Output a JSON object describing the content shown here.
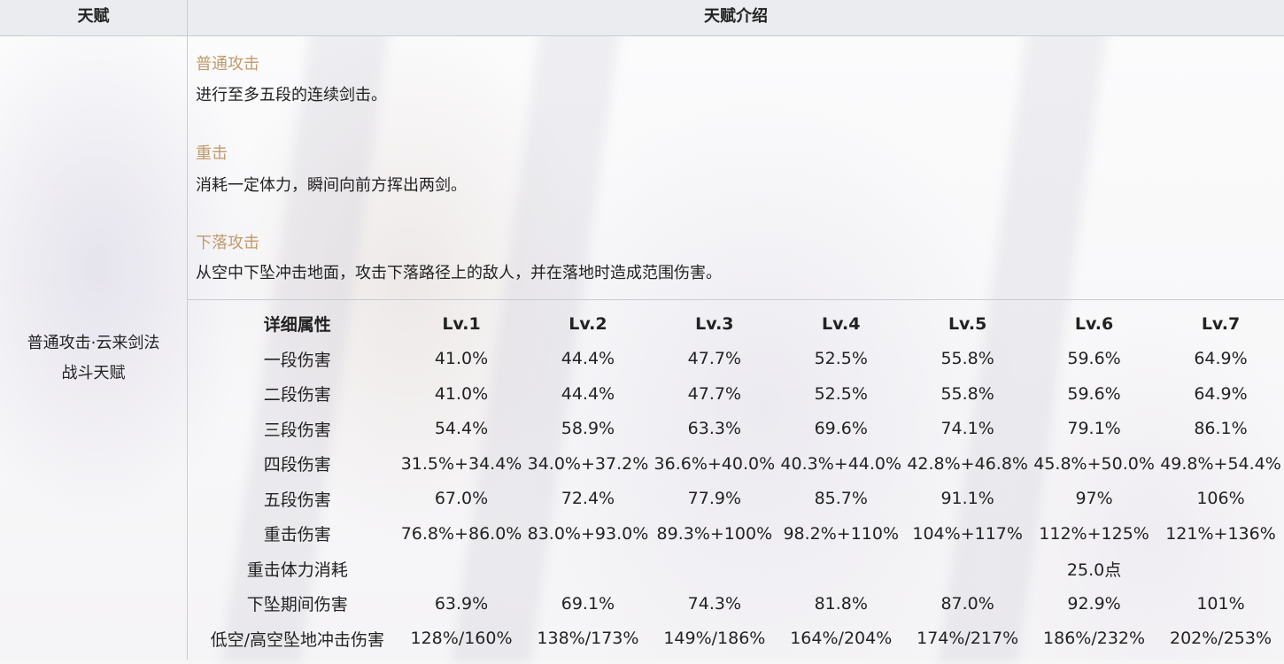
{
  "header": {
    "col1": "天赋",
    "col2": "天赋介绍"
  },
  "talent": {
    "name": "普通攻击·云来剑法",
    "type": "战斗天赋"
  },
  "sections": [
    {
      "title": "普通攻击",
      "text": "进行至多五段的连续剑击。"
    },
    {
      "title": "重击",
      "text": "消耗一定体力，瞬间向前方挥出两剑。"
    },
    {
      "title": "下落攻击",
      "text": "从空中下坠冲击地面，攻击下落路径上的敌人，并在落地时造成范围伤害。"
    }
  ],
  "stats": {
    "headers": [
      "详细属性",
      "Lv.1",
      "Lv.2",
      "Lv.3",
      "Lv.4",
      "Lv.5",
      "Lv.6",
      "Lv.7"
    ],
    "rows": [
      {
        "label": "一段伤害",
        "values": [
          "41.0%",
          "44.4%",
          "47.7%",
          "52.5%",
          "55.8%",
          "59.6%",
          "64.9%"
        ]
      },
      {
        "label": "二段伤害",
        "values": [
          "41.0%",
          "44.4%",
          "47.7%",
          "52.5%",
          "55.8%",
          "59.6%",
          "64.9%"
        ]
      },
      {
        "label": "三段伤害",
        "values": [
          "54.4%",
          "58.9%",
          "63.3%",
          "69.6%",
          "74.1%",
          "79.1%",
          "86.1%"
        ]
      },
      {
        "label": "四段伤害",
        "values": [
          "31.5%+34.4%",
          "34.0%+37.2%",
          "36.6%+40.0%",
          "40.3%+44.0%",
          "42.8%+46.8%",
          "45.8%+50.0%",
          "49.8%+54.4%"
        ]
      },
      {
        "label": "五段伤害",
        "values": [
          "67.0%",
          "72.4%",
          "77.9%",
          "85.7%",
          "91.1%",
          "97%",
          "106%"
        ]
      },
      {
        "label": "重击伤害",
        "values": [
          "76.8%+86.0%",
          "83.0%+93.0%",
          "89.3%+100%",
          "98.2%+110%",
          "104%+117%",
          "112%+125%",
          "121%+136%"
        ]
      },
      {
        "label": "重击体力消耗",
        "values": [
          "",
          "",
          "",
          "",
          "",
          "25.0点",
          ""
        ]
      },
      {
        "label": "下坠期间伤害",
        "values": [
          "63.9%",
          "69.1%",
          "74.3%",
          "81.8%",
          "87.0%",
          "92.9%",
          "101%"
        ]
      },
      {
        "label": "低空/高空坠地冲击伤害",
        "values": [
          "128%/160%",
          "138%/173%",
          "149%/186%",
          "164%/204%",
          "174%/217%",
          "186%/232%",
          "202%/253%"
        ]
      }
    ]
  }
}
